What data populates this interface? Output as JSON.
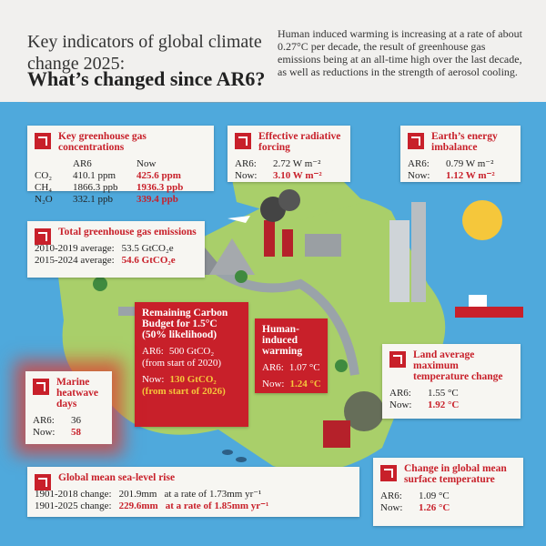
{
  "header": {
    "title": "Key indicators of global climate change 2025:",
    "subtitle": "What’s changed since AR6?",
    "description": "Human induced warming is increasing at a rate of about 0.27°C per decade, the result of greenhouse gas emissions being at an all-time high over the last decade, as well as reductions in the strength of aerosol cooling."
  },
  "ghg_concentrations": {
    "title": "Key greenhouse gas concentrations",
    "columns": [
      "AR6",
      "Now"
    ],
    "rows": [
      [
        "CO₂",
        "410.1 ppm",
        "425.6 ppm"
      ],
      [
        "CH₄",
        "1866.3 ppb",
        "1936.3 ppb"
      ],
      [
        "N₂O",
        "332.1 ppb",
        "339.4 ppb"
      ]
    ]
  },
  "radiative_forcing": {
    "title": "Effective radiative forcing",
    "rows": [
      [
        "AR6:",
        "2.72 W m⁻²"
      ],
      [
        "Now:",
        "3.10 W m⁻²"
      ]
    ]
  },
  "energy_imbalance": {
    "title": "Earth’s energy imbalance",
    "rows": [
      [
        "AR6:",
        "0.79 W m⁻²"
      ],
      [
        "Now:",
        "1.12 W m⁻²"
      ]
    ]
  },
  "ghg_emissions": {
    "title": "Total greenhouse gas emissions",
    "rows": [
      [
        "2010-2019 average:",
        "53.5 GtCO₂e"
      ],
      [
        "2015-2024 average:",
        "54.6 GtCO₂e"
      ]
    ]
  },
  "carbon_budget": {
    "title": "Remaining Carbon Budget for 1.5°C (50% likelihood)",
    "rows": [
      [
        "AR6:",
        "500 GtCO₂",
        "(from start of 2020)"
      ],
      [
        "Now:",
        "130 GtCO₂",
        "(from start of 2026)"
      ]
    ]
  },
  "human_warming": {
    "title": "Human-induced warming",
    "rows": [
      [
        "AR6:",
        "1.07 °C"
      ],
      [
        "Now:",
        "1.24 °C"
      ]
    ]
  },
  "marine_heatwave": {
    "title": "Marine heatwave days",
    "rows": [
      [
        "AR6:",
        "36"
      ],
      [
        "Now:",
        "58"
      ]
    ]
  },
  "land_max_temp": {
    "title": "Land average maximum temperature change",
    "rows": [
      [
        "AR6:",
        "1.55 °C"
      ],
      [
        "Now:",
        "1.92 °C"
      ]
    ]
  },
  "sea_level": {
    "title": "Global mean sea-level rise",
    "rows": [
      [
        "1901-2018 change:",
        "201.9mm",
        "at a rate of 1.73mm yr⁻¹"
      ],
      [
        "1901-2025 change:",
        "229.6mm",
        "at a rate of 1.85mm yr⁻¹"
      ]
    ]
  },
  "surface_temp": {
    "title": "Change in global mean surface temperature",
    "rows": [
      [
        "AR6:",
        "1.09 °C"
      ],
      [
        "Now:",
        "1.26 °C"
      ]
    ]
  }
}
